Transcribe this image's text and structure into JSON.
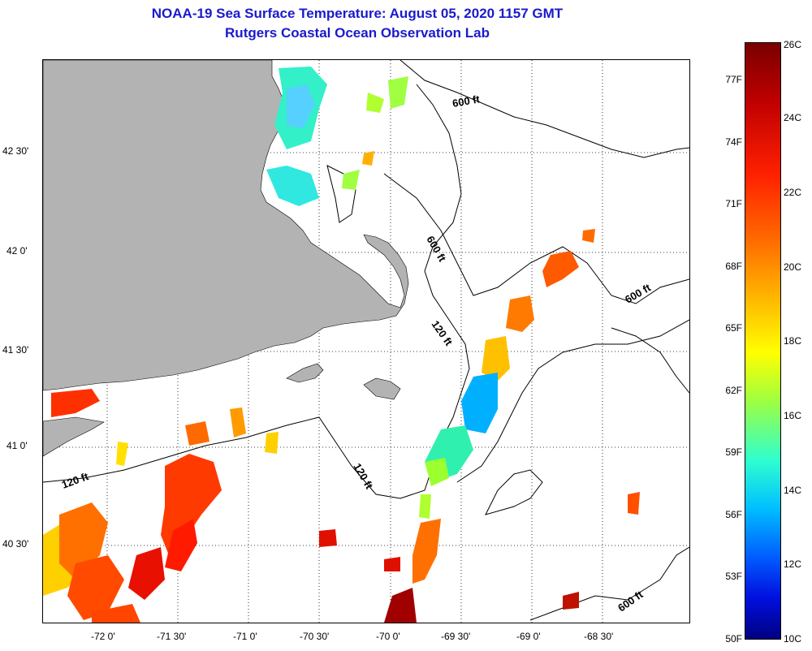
{
  "title": {
    "line1": "NOAA-19 Sea Surface Temperature:  August 05, 2020 1157 GMT",
    "line2": "Rutgers Coastal Ocean Observation Lab"
  },
  "axes": {
    "lon_labels": [
      "-72 0'",
      "-71 30'",
      "-71 0'",
      "-70 30'",
      "-70 0'",
      "-69 30'",
      "-69 0'",
      "-68 30'"
    ],
    "lat_labels": [
      "42 30'",
      "42 0'",
      "41 30'",
      "41 0'",
      "40 30'"
    ]
  },
  "contours": {
    "label_600_a": "600 ft",
    "label_600_b": "600 ft",
    "label_600_c": "600 ft",
    "label_600_d": "600 ft",
    "label_120_a": "120 ft",
    "label_120_b": "120 ft",
    "label_120_c": "120 ft"
  },
  "colorbar": {
    "fahrenheit": [
      "77F",
      "74F",
      "71F",
      "68F",
      "65F",
      "62F",
      "59F",
      "56F",
      "53F",
      "50F"
    ],
    "celsius": [
      "26C",
      "24C",
      "22C",
      "20C",
      "18C",
      "16C",
      "14C",
      "12C",
      "10C"
    ]
  },
  "colors": {
    "land": "#b3b3b3",
    "title": "#1a1acc"
  }
}
